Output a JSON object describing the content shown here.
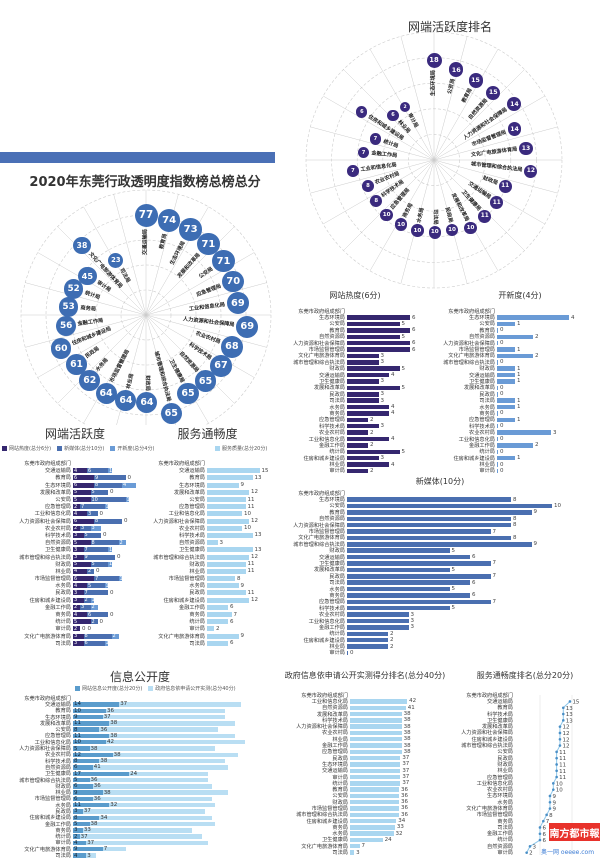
{
  "colors": {
    "heat": "#35276f",
    "newmedia": "#4a6fb0",
    "kaixin": "#6a9bd6",
    "service": "#a9d6f0",
    "info_site": "#5a9ccc",
    "info_apply": "#b9def3",
    "main_bubble": "#3d6db3",
    "top_bubble": "#3a2a7e"
  },
  "header_label": "东莞市政府组成部门",
  "chart_data": [
    {
      "id": "top_radial",
      "type": "radial-bubble",
      "title": "网端活跃度排名",
      "labels": [
        "生态环境局",
        "公安局",
        "教育局",
        "自然资源局",
        "人力资源和社会保障局",
        "市场监督管理局",
        "文化广电旅游体育局",
        "城市管理和综合执法局",
        "财政局",
        "交通运输局",
        "卫生健康局",
        "发展和改革局",
        "民政局",
        "司法局",
        "水务局",
        "商务局",
        "应急管理局",
        "科学技术局",
        "农业农村局",
        "工业和信息化局",
        "金融工作局",
        "统计局",
        "住房和城乡建设局",
        "林业局",
        "审计局"
      ],
      "values": [
        18,
        16,
        15,
        15,
        14,
        14,
        13,
        12,
        11,
        11,
        11,
        10,
        10,
        10,
        10,
        10,
        10,
        8,
        8,
        7,
        7,
        7,
        6,
        6,
        2
      ]
    },
    {
      "id": "main_radial",
      "type": "radial-bubble",
      "title": "2020年东莞行政透明度指数榜总榜总分",
      "labels": [
        "交通运输局",
        "教育局",
        "生态环境局",
        "发展和改革局",
        "公安局",
        "应急管理局",
        "工业和信息化局",
        "人力资源和社会保障局",
        "农业农村局",
        "科学技术局",
        "自然资源局",
        "卫生健康局",
        "城市管理和综合执法局",
        "财政局",
        "林业局",
        "市场监督管理局",
        "水务局",
        "民政局",
        "住房和城乡建设局",
        "金融工作局",
        "商务局",
        "统计局",
        "审计局",
        "文化广电旅游体育局",
        "司法局"
      ],
      "values": [
        77,
        74,
        73,
        71,
        71,
        70,
        69,
        69,
        68,
        67,
        65,
        65,
        65,
        64,
        64,
        64,
        62,
        61,
        60,
        56,
        53,
        52,
        45,
        38,
        23
      ]
    },
    {
      "id": "activity",
      "type": "bar",
      "stacked": true,
      "title": "网端活跃度",
      "legend": [
        "网站热度(总分6分)",
        "新媒体(总分10分)",
        "开新度(总分4分)"
      ],
      "categories": [
        "交通运输局",
        "教育局",
        "生态环境局",
        "发展和改革局",
        "公安局",
        "应急管理局",
        "工业和信息化局",
        "人力资源和社会保障局",
        "农业农村局",
        "科学技术局",
        "自然资源局",
        "卫生健康局",
        "城市管理和综合执法局",
        "财政局",
        "林业局",
        "市场监督管理局",
        "水务局",
        "民政局",
        "住房和城乡建设局",
        "金融工作局",
        "商务局",
        "统计局",
        "审计局",
        "文化广电旅游体育局",
        "司法局"
      ],
      "series": [
        {
          "name": "网站热度",
          "values": [
            4,
            6,
            6,
            5,
            5,
            2,
            4,
            6,
            2,
            3,
            5,
            3,
            3,
            5,
            4,
            6,
            4,
            3,
            3,
            2,
            4,
            5,
            2,
            3,
            3
          ]
        },
        {
          "name": "新媒体",
          "values": [
            6,
            9,
            8,
            5,
            10,
            7,
            3,
            8,
            3,
            5,
            8,
            7,
            9,
            5,
            2,
            7,
            5,
            7,
            2,
            3,
            6,
            2,
            0,
            8,
            6
          ]
        },
        {
          "name": "开新度",
          "values": [
            1,
            0,
            4,
            0,
            1,
            1,
            0,
            0,
            3,
            0,
            2,
            1,
            0,
            1,
            0,
            1,
            1,
            0,
            1,
            2,
            0,
            0,
            0,
            2,
            1
          ]
        }
      ]
    },
    {
      "id": "service",
      "type": "bar",
      "title": "服务通畅度",
      "legend": [
        "服务质量(总分20分)"
      ],
      "categories": [
        "交通运输局",
        "教育局",
        "生态环境局",
        "发展和改革局",
        "公安局",
        "应急管理局",
        "工业和信息化局",
        "人力资源和社会保障局",
        "农业农村局",
        "科学技术局",
        "自然资源局",
        "卫生健康局",
        "城市管理和综合执法局",
        "财政局",
        "林业局",
        "市场监督管理局",
        "水务局",
        "民政局",
        "住房和城乡建设局",
        "金融工作局",
        "商务局",
        "统计局",
        "审计局",
        "文化广电旅游体育局",
        "司法局"
      ],
      "values": [
        15,
        13,
        9,
        12,
        11,
        11,
        10,
        12,
        10,
        13,
        3,
        13,
        12,
        11,
        11,
        8,
        9,
        11,
        12,
        6,
        7,
        6,
        2,
        9,
        6
      ]
    },
    {
      "id": "info",
      "type": "bar",
      "stacked": true,
      "title": "信息公开度",
      "legend": [
        "网站信息公开度(总分20分)",
        "政府信息依申请公开实测(总分40分)"
      ],
      "categories": [
        "交通运输局",
        "教育局",
        "生态环境局",
        "发展和改革局",
        "公安局",
        "应急管理局",
        "工业和信息化局",
        "人力资源和社会保障局",
        "农业农村局",
        "科学技术局",
        "自然资源局",
        "卫生健康局",
        "城市管理和综合执法局",
        "财政局",
        "林业局",
        "市场监督管理局",
        "水务局",
        "民政局",
        "住房和城乡建设局",
        "金融工作局",
        "商务局",
        "统计局",
        "审计局",
        "文化广电旅游体育局",
        "司法局"
      ],
      "series": [
        {
          "name": "网站信息公开度",
          "values": [
            14,
            10,
            9,
            11,
            8,
            11,
            10,
            5,
            12,
            8,
            6,
            17,
            5,
            6,
            9,
            6,
            11,
            3,
            8,
            5,
            3,
            2,
            4,
            9,
            4
          ]
        },
        {
          "name": "政府信息依申请公开实测",
          "values": [
            37,
            36,
            37,
            38,
            36,
            38,
            42,
            38,
            38,
            38,
            41,
            24,
            36,
            36,
            38,
            36,
            32,
            37,
            34,
            38,
            33,
            37,
            37,
            7,
            3
          ]
        }
      ]
    },
    {
      "id": "heat",
      "type": "bar",
      "title": "网站热度(6分)",
      "categories": [
        "生态环境局",
        "公安局",
        "教育局",
        "自然资源局",
        "人力资源和社会保障局",
        "市场监督管理局",
        "文化广电旅游体育局",
        "城市管理和综合执法局",
        "财政局",
        "交通运输局",
        "卫生健康局",
        "发展和改革局",
        "民政局",
        "司法局",
        "水务局",
        "商务局",
        "应急管理局",
        "科学技术局",
        "农业农村局",
        "工业和信息化局",
        "金融工作局",
        "统计局",
        "住房和城乡建设局",
        "林业局",
        "审计局"
      ],
      "values": [
        6,
        5,
        6,
        5,
        6,
        6,
        3,
        3,
        5,
        4,
        3,
        5,
        3,
        3,
        4,
        4,
        2,
        3,
        2,
        4,
        2,
        5,
        3,
        4,
        2
      ]
    },
    {
      "id": "kaixin",
      "type": "bar",
      "title": "开新度(4分)",
      "categories": [
        "生态环境局",
        "公安局",
        "教育局",
        "自然资源局",
        "人力资源和社会保障局",
        "市场监督管理局",
        "文化广电旅游体育局",
        "城市管理和综合执法局",
        "财政局",
        "交通运输局",
        "卫生健康局",
        "发展和改革局",
        "民政局",
        "司法局",
        "水务局",
        "商务局",
        "应急管理局",
        "科学技术局",
        "农业农村局",
        "工业和信息化局",
        "金融工作局",
        "统计局",
        "住房和城乡建设局",
        "林业局",
        "审计局"
      ],
      "values": [
        4,
        1,
        0,
        2,
        0,
        1,
        2,
        0,
        1,
        1,
        1,
        0,
        0,
        1,
        1,
        0,
        1,
        0,
        3,
        0,
        2,
        0,
        1,
        0,
        0
      ]
    },
    {
      "id": "newmedia",
      "type": "bar",
      "title": "新媒体(10分)",
      "categories": [
        "生态环境局",
        "公安局",
        "教育局",
        "自然资源局",
        "人力资源和社会保障局",
        "市场监督管理局",
        "文化广电旅游体育局",
        "城市管理和综合执法局",
        "财政局",
        "交通运输局",
        "卫生健康局",
        "发展和改革局",
        "民政局",
        "司法局",
        "水务局",
        "商务局",
        "应急管理局",
        "科学技术局",
        "农业农村局",
        "工业和信息化局",
        "金融工作局",
        "统计局",
        "住房和城乡建设局",
        "林业局",
        "审计局"
      ],
      "values": [
        8,
        10,
        9,
        8,
        8,
        7,
        8,
        9,
        5,
        6,
        7,
        5,
        7,
        6,
        5,
        6,
        7,
        5,
        3,
        3,
        3,
        2,
        2,
        2,
        0
      ]
    },
    {
      "id": "apply",
      "type": "bar",
      "title": "政府信息依申请公开实测得分排名(总分40分)",
      "categories": [
        "工业和信息化局",
        "自然资源局",
        "发展和改革局",
        "科学技术局",
        "人力资源和社会保障局",
        "农业农村局",
        "林业局",
        "金融工作局",
        "应急管理局",
        "民政局",
        "生态环境局",
        "交通运输局",
        "审计局",
        "统计局",
        "教育局",
        "公安局",
        "财政局",
        "市场监督管理局",
        "城市管理和综合执法局",
        "住房和城乡建设局",
        "商务局",
        "水务局",
        "卫生健康局",
        "文化广电旅游体育局",
        "司法局"
      ],
      "values": [
        42,
        41,
        38,
        38,
        38,
        38,
        38,
        38,
        38,
        37,
        37,
        37,
        37,
        37,
        36,
        36,
        36,
        36,
        36,
        34,
        33,
        32,
        24,
        7,
        3
      ]
    },
    {
      "id": "service_rank",
      "type": "line",
      "title": "服务通畅度排名(总分20分)",
      "categories": [
        "交通运输局",
        "教育局",
        "科学技术局",
        "卫生健康局",
        "发展和改革局",
        "人力资源和社会保障局",
        "住房和城乡建设局",
        "城市管理和综合执法局",
        "公安局",
        "民政局",
        "财政局",
        "林业局",
        "应急管理局",
        "工业和信息化局",
        "农业农村局",
        "生态环境局",
        "水务局",
        "文化广电旅游体育局",
        "市场监督管理局",
        "商务局",
        "司法局",
        "金融工作局",
        "统计局",
        "自然资源局",
        "审计局"
      ],
      "values": [
        15,
        13,
        13,
        13,
        12,
        12,
        12,
        12,
        11,
        11,
        11,
        11,
        11,
        10,
        10,
        9,
        9,
        9,
        8,
        7,
        6,
        6,
        6,
        3,
        2
      ]
    }
  ],
  "logo": {
    "name": "南方都市報",
    "site": "奥一网 oeeee.com"
  }
}
